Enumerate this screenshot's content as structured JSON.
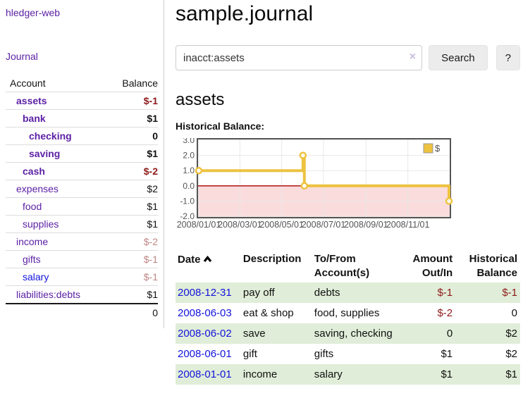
{
  "app": {
    "title": "hledger-web"
  },
  "colors": {
    "link_purple": "#5c21a5",
    "link_blue": "#1313dd",
    "negative_dark": "#8e1919",
    "negative_rose": "#c08585",
    "row_green": "#e0edd8",
    "series_gold": "#edc240",
    "negative_region_pink": "#fbdcdc",
    "zero_line_red": "#aa0000",
    "chart_frame": "#545454",
    "grid_line": "#e8e8e8",
    "axis_text": "#545454"
  },
  "sidebar": {
    "journal_link": "Journal",
    "headers": [
      "Account",
      "Balance"
    ],
    "accounts": [
      {
        "name": "assets",
        "depth": 1,
        "emphasis": true,
        "balance": "$-1",
        "balance_class": "neg",
        "link_class": ""
      },
      {
        "name": "bank",
        "depth": 2,
        "emphasis": true,
        "balance": "$1",
        "balance_class": "",
        "link_class": ""
      },
      {
        "name": "checking",
        "depth": 3,
        "emphasis": true,
        "balance": "0",
        "balance_class": "",
        "link_class": ""
      },
      {
        "name": "saving",
        "depth": 3,
        "emphasis": true,
        "balance": "$1",
        "balance_class": "",
        "link_class": ""
      },
      {
        "name": "cash",
        "depth": 2,
        "emphasis": true,
        "balance": "$-2",
        "balance_class": "neg",
        "link_class": ""
      },
      {
        "name": "expenses",
        "depth": 1,
        "emphasis": false,
        "balance": "$2",
        "balance_class": "",
        "link_class": ""
      },
      {
        "name": "food",
        "depth": 2,
        "emphasis": false,
        "balance": "$1",
        "balance_class": "",
        "link_class": ""
      },
      {
        "name": "supplies",
        "depth": 2,
        "emphasis": false,
        "balance": "$1",
        "balance_class": "",
        "link_class": ""
      },
      {
        "name": "income",
        "depth": 1,
        "emphasis": false,
        "balance": "$-2",
        "balance_class": "rose",
        "link_class": ""
      },
      {
        "name": "gifts",
        "depth": 2,
        "emphasis": false,
        "balance": "$-1",
        "balance_class": "rose",
        "link_class": ""
      },
      {
        "name": "salary",
        "depth": 2,
        "emphasis": false,
        "balance": "$-1",
        "balance_class": "rose",
        "link_class": "blue"
      },
      {
        "name": "liabilities:debts",
        "depth": 1,
        "emphasis": false,
        "balance": "$1",
        "balance_class": "",
        "link_class": ""
      }
    ],
    "total": "0"
  },
  "header": {
    "title": "sample.journal"
  },
  "search": {
    "value": "inacct:assets",
    "clear_icon": "×",
    "button_label": "Search",
    "help_label": "?"
  },
  "account_page": {
    "title": "assets"
  },
  "chart_data": {
    "type": "line",
    "title": "Historical Balance:",
    "series": [
      {
        "name": "$",
        "color": "#edc240",
        "step": true,
        "points": [
          {
            "x": "2008/01/01",
            "y": 1
          },
          {
            "x": "2008/06/01",
            "y": 2
          },
          {
            "x": "2008/06/03",
            "y": 0
          },
          {
            "x": "2008/12/31",
            "y": -1
          }
        ]
      }
    ],
    "x_range": [
      "2008/01/01",
      "2008/12/31"
    ],
    "ylim": [
      -2,
      3
    ],
    "yticks": [
      3.0,
      2.0,
      1.0,
      0.0,
      -1.0,
      -2.0
    ],
    "xticks": [
      "2008/01/01",
      "2008/03/01",
      "2008/05/01",
      "2008/07/01",
      "2008/09/01",
      "2008/11/01"
    ],
    "legend": {
      "label": "$",
      "position": "top-right"
    },
    "grid": true,
    "negative_region": {
      "below": 0
    }
  },
  "register": {
    "headers": {
      "date": "Date",
      "description": "Description",
      "tofrom": "To/From Account(s)",
      "amount": "Amount Out/In",
      "balance": "Historical Balance"
    },
    "rows": [
      {
        "date": "2008-12-31",
        "description": "pay off",
        "tofrom": "debts",
        "amount": "$-1",
        "amount_class": "neg",
        "balance": "$-1",
        "balance_class": "neg"
      },
      {
        "date": "2008-06-03",
        "description": "eat & shop",
        "tofrom": "food, supplies",
        "amount": "$-2",
        "amount_class": "neg",
        "balance": "0",
        "balance_class": ""
      },
      {
        "date": "2008-06-02",
        "description": "save",
        "tofrom": "saving, checking",
        "amount": "0",
        "amount_class": "",
        "balance": "$2",
        "balance_class": ""
      },
      {
        "date": "2008-06-01",
        "description": "gift",
        "tofrom": "gifts",
        "amount": "$1",
        "amount_class": "",
        "balance": "$2",
        "balance_class": ""
      },
      {
        "date": "2008-01-01",
        "description": "income",
        "tofrom": "salary",
        "amount": "$1",
        "amount_class": "",
        "balance": "$1",
        "balance_class": ""
      }
    ]
  }
}
